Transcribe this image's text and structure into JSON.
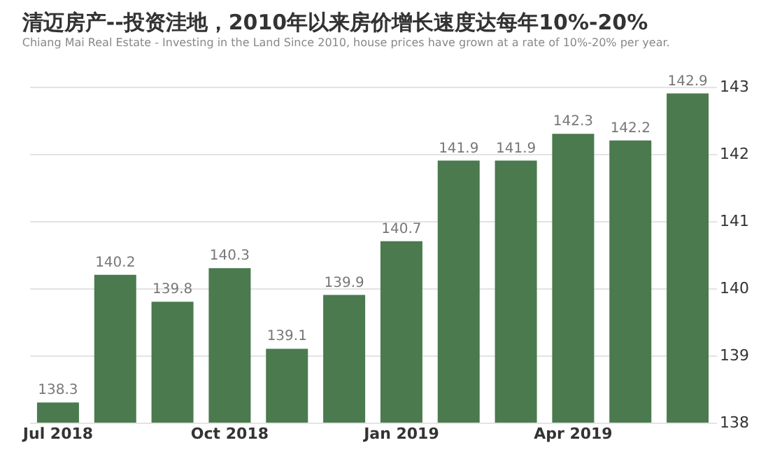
{
  "chart_data": {
    "type": "bar",
    "title": "清迈房产--投资洼地，2010年以来房价增长速度达每年10%-20%",
    "subtitle": "Chiang Mai Real Estate - Investing in the Land Since 2010, house prices have grown at a rate of 10%-20% per year.",
    "categories": [
      "Jul 2018",
      null,
      null,
      "Oct 2018",
      null,
      null,
      "Jan 2019",
      null,
      null,
      "Apr 2019",
      null,
      null
    ],
    "values": [
      138.3,
      140.2,
      139.8,
      140.3,
      139.1,
      139.9,
      140.7,
      141.9,
      141.9,
      142.3,
      142.2,
      142.9
    ],
    "color": "#4a7a4e",
    "ylim": [
      138,
      143
    ],
    "yticks": [
      138,
      139,
      140,
      141,
      142,
      143
    ],
    "grid": "y",
    "data_labels": true
  }
}
